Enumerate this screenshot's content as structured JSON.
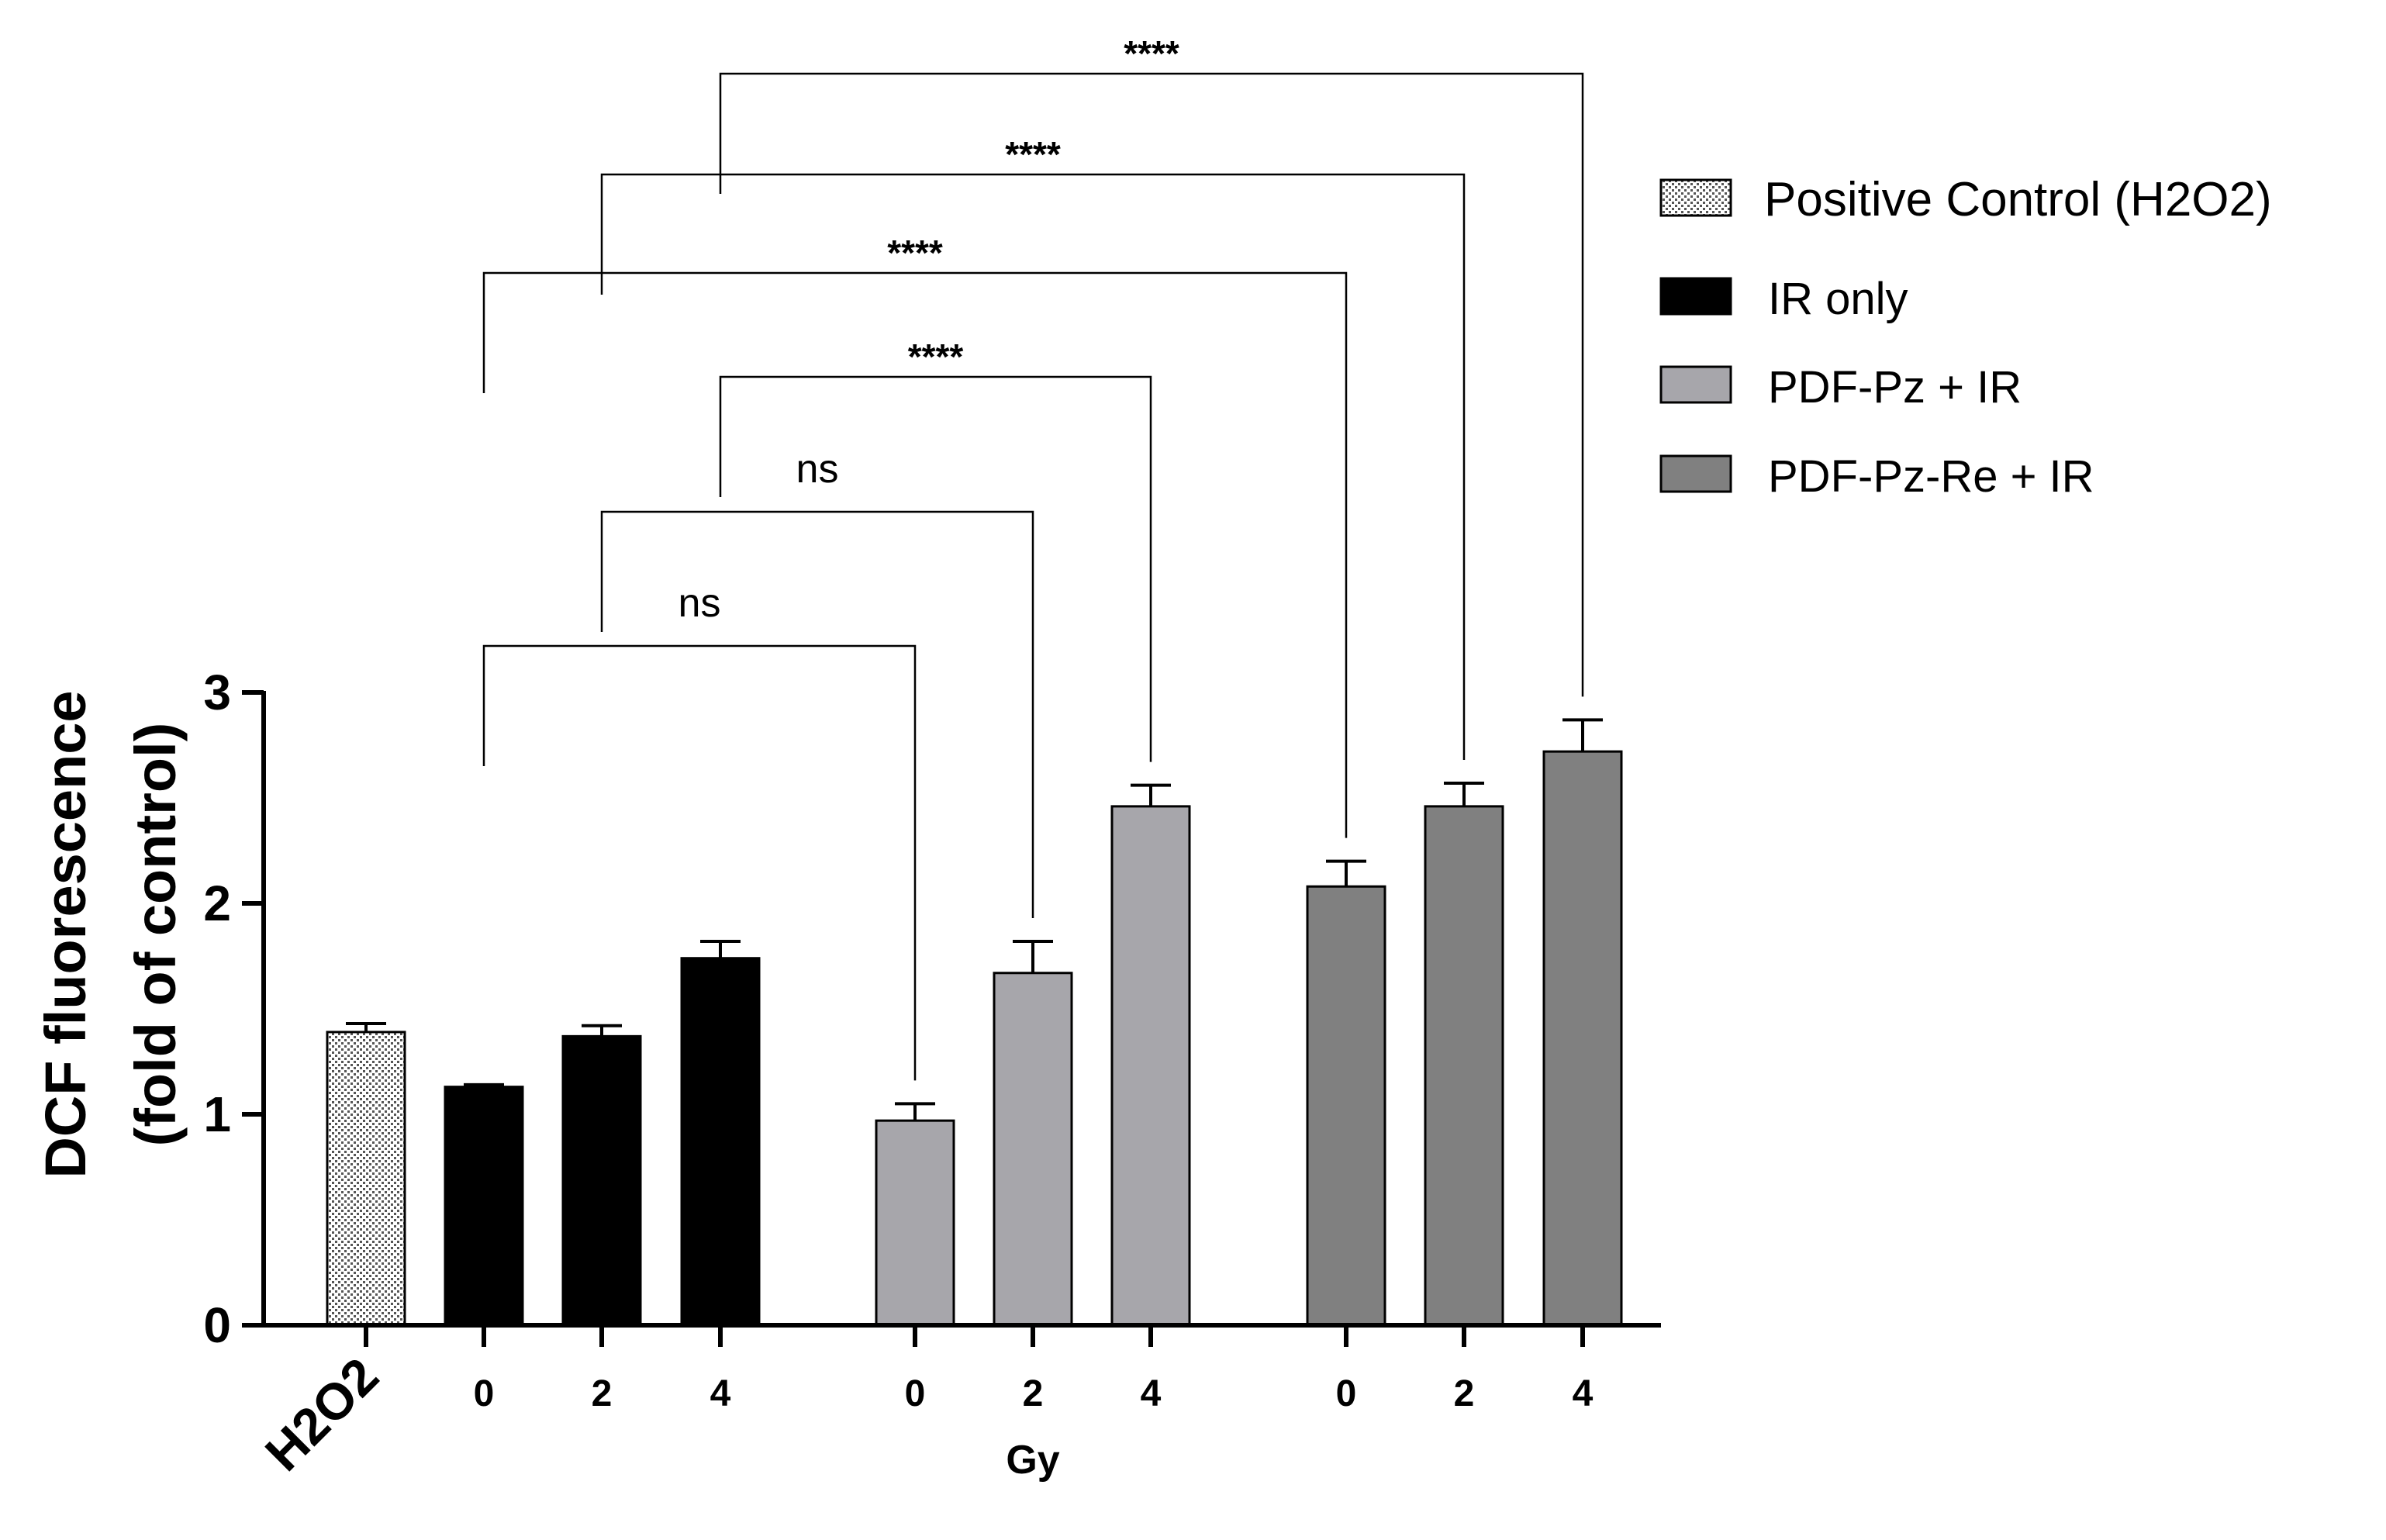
{
  "chart_data": {
    "type": "bar",
    "ylabel_line1": "DCF fluorescence",
    "ylabel_line2": "(fold of control)",
    "xlabel": "Gy",
    "ylim": [
      0,
      3
    ],
    "yticks": [
      "0",
      "1",
      "2",
      "3"
    ],
    "bars": [
      {
        "group": "Positive Control (H2O2)",
        "label": "H2O2",
        "value": 1.39,
        "error": 0.04
      },
      {
        "group": "IR only",
        "label": "0",
        "value": 1.13,
        "error": 0.01
      },
      {
        "group": "IR only",
        "label": "2",
        "value": 1.37,
        "error": 0.05
      },
      {
        "group": "IR only",
        "label": "4",
        "value": 1.74,
        "error": 0.08
      },
      {
        "group": "PDF-Pz + IR",
        "label": "0",
        "value": 0.97,
        "error": 0.08
      },
      {
        "group": "PDF-Pz + IR",
        "label": "2",
        "value": 1.67,
        "error": 0.15
      },
      {
        "group": "PDF-Pz + IR",
        "label": "4",
        "value": 2.46,
        "error": 0.1
      },
      {
        "group": "PDF-Pz-Re + IR",
        "label": "0",
        "value": 2.08,
        "error": 0.12
      },
      {
        "group": "PDF-Pz-Re + IR",
        "label": "2",
        "value": 2.46,
        "error": 0.11
      },
      {
        "group": "PDF-Pz-Re + IR",
        "label": "4",
        "value": 2.72,
        "error": 0.15
      }
    ],
    "series": [
      {
        "name": "Positive Control (H2O2)",
        "pattern": "dotted",
        "color": "#ffffff"
      },
      {
        "name": "IR only",
        "color": "#000000"
      },
      {
        "name": " PDF-Pz + IR",
        "color": "#a7a6ab"
      },
      {
        "name": "PDF-Pz-Re + IR",
        "color": "#808080"
      }
    ],
    "comparisons": [
      {
        "from": 1,
        "to": 4,
        "label": "ns"
      },
      {
        "from": 2,
        "to": 5,
        "label": "ns"
      },
      {
        "from": 3,
        "to": 6,
        "label": "****"
      },
      {
        "from": 1,
        "to": 7,
        "label": "****"
      },
      {
        "from": 2,
        "to": 8,
        "label": "****"
      },
      {
        "from": 3,
        "to": 9,
        "label": "****"
      }
    ],
    "grid": false,
    "legend_position": "top-right"
  }
}
